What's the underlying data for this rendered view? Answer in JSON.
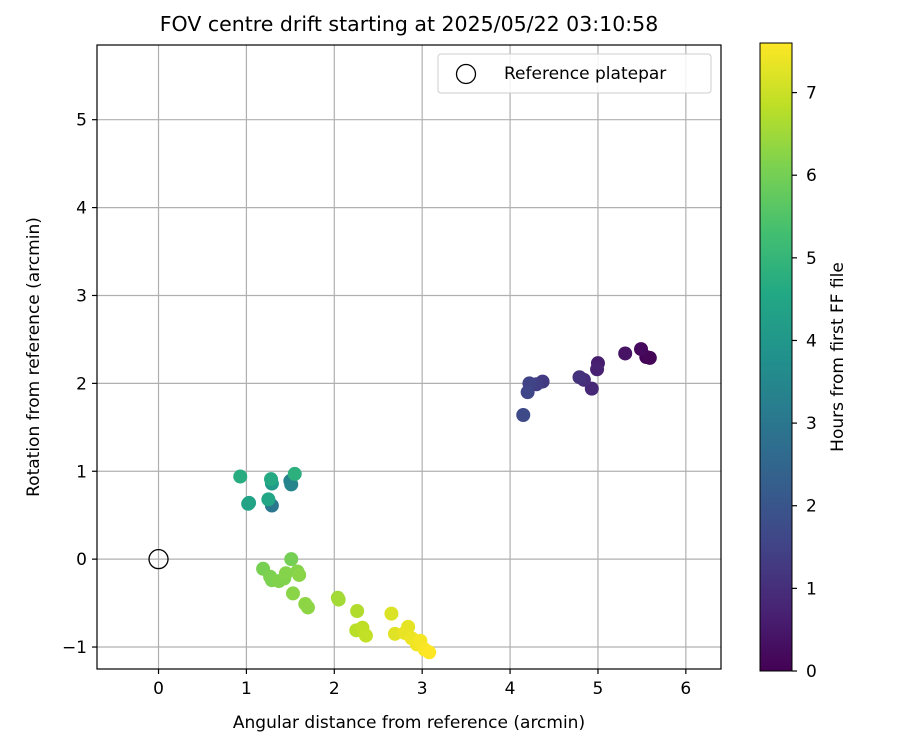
{
  "chart_data": {
    "type": "scatter",
    "title": "FOV centre drift starting at 2025/05/22 03:10:58",
    "xlabel": "Angular distance from reference (arcmin)",
    "ylabel": "Rotation from reference (arcmin)",
    "xlim": [
      -0.7,
      6.4
    ],
    "ylim": [
      -1.25,
      5.85
    ],
    "xticks": [
      0,
      1,
      2,
      3,
      4,
      5,
      6
    ],
    "yticks": [
      -1,
      0,
      1,
      2,
      3,
      4,
      5
    ],
    "grid": true,
    "legend": {
      "position": "top-right",
      "entries": [
        "Reference platepar"
      ]
    },
    "colorbar": {
      "label": "Hours from first FF file",
      "range": [
        0,
        7.6
      ],
      "ticks": [
        0,
        1,
        2,
        3,
        4,
        5,
        6,
        7
      ],
      "colormap": "viridis"
    },
    "reference_point": {
      "x": 0,
      "y": 0,
      "label": "Reference platepar"
    },
    "points": [
      {
        "x": 5.55,
        "y": 2.3,
        "t": 0.05
      },
      {
        "x": 5.59,
        "y": 2.29,
        "t": 0.1
      },
      {
        "x": 5.49,
        "y": 2.39,
        "t": 0.2
      },
      {
        "x": 5.31,
        "y": 2.34,
        "t": 0.4
      },
      {
        "x": 5.0,
        "y": 2.23,
        "t": 0.6
      },
      {
        "x": 4.99,
        "y": 2.16,
        "t": 0.7
      },
      {
        "x": 4.93,
        "y": 1.94,
        "t": 0.85
      },
      {
        "x": 4.84,
        "y": 2.04,
        "t": 1.0
      },
      {
        "x": 4.79,
        "y": 2.07,
        "t": 1.1
      },
      {
        "x": 4.37,
        "y": 2.02,
        "t": 1.3
      },
      {
        "x": 4.3,
        "y": 1.99,
        "t": 1.4
      },
      {
        "x": 4.22,
        "y": 2.0,
        "t": 1.5
      },
      {
        "x": 4.2,
        "y": 1.9,
        "t": 1.6
      },
      {
        "x": 4.15,
        "y": 1.64,
        "t": 1.7
      },
      {
        "x": 1.29,
        "y": 0.61,
        "t": 3.0
      },
      {
        "x": 1.5,
        "y": 0.89,
        "t": 3.3
      },
      {
        "x": 1.51,
        "y": 0.85,
        "t": 3.4
      },
      {
        "x": 1.29,
        "y": 0.86,
        "t": 4.1
      },
      {
        "x": 1.03,
        "y": 0.64,
        "t": 4.3
      },
      {
        "x": 1.02,
        "y": 0.63,
        "t": 4.4
      },
      {
        "x": 1.25,
        "y": 0.68,
        "t": 4.5
      },
      {
        "x": 1.28,
        "y": 0.91,
        "t": 4.6
      },
      {
        "x": 0.93,
        "y": 0.94,
        "t": 4.7
      },
      {
        "x": 1.55,
        "y": 0.97,
        "t": 4.8
      },
      {
        "x": 1.51,
        "y": 0.0,
        "t": 6.0
      },
      {
        "x": 1.19,
        "y": -0.11,
        "t": 6.05
      },
      {
        "x": 1.27,
        "y": -0.2,
        "t": 6.1
      },
      {
        "x": 1.29,
        "y": -0.24,
        "t": 6.1
      },
      {
        "x": 1.37,
        "y": -0.25,
        "t": 6.15
      },
      {
        "x": 1.43,
        "y": -0.22,
        "t": 6.15
      },
      {
        "x": 1.45,
        "y": -0.16,
        "t": 6.2
      },
      {
        "x": 1.58,
        "y": -0.14,
        "t": 6.2
      },
      {
        "x": 1.6,
        "y": -0.18,
        "t": 6.25
      },
      {
        "x": 1.53,
        "y": -0.39,
        "t": 6.25
      },
      {
        "x": 1.67,
        "y": -0.51,
        "t": 6.3
      },
      {
        "x": 1.7,
        "y": -0.55,
        "t": 6.3
      },
      {
        "x": 2.04,
        "y": -0.44,
        "t": 6.5
      },
      {
        "x": 2.05,
        "y": -0.46,
        "t": 6.55
      },
      {
        "x": 2.26,
        "y": -0.59,
        "t": 6.7
      },
      {
        "x": 2.25,
        "y": -0.81,
        "t": 6.8
      },
      {
        "x": 2.32,
        "y": -0.78,
        "t": 6.85
      },
      {
        "x": 2.36,
        "y": -0.87,
        "t": 6.9
      },
      {
        "x": 2.65,
        "y": -0.62,
        "t": 7.2
      },
      {
        "x": 2.69,
        "y": -0.85,
        "t": 7.25
      },
      {
        "x": 2.84,
        "y": -0.77,
        "t": 7.3
      },
      {
        "x": 2.8,
        "y": -0.84,
        "t": 7.35
      },
      {
        "x": 2.88,
        "y": -0.9,
        "t": 7.4
      },
      {
        "x": 2.94,
        "y": -0.97,
        "t": 7.45
      },
      {
        "x": 2.98,
        "y": -0.93,
        "t": 7.5
      },
      {
        "x": 3.03,
        "y": -1.03,
        "t": 7.55
      },
      {
        "x": 3.08,
        "y": -1.06,
        "t": 7.6
      }
    ]
  }
}
